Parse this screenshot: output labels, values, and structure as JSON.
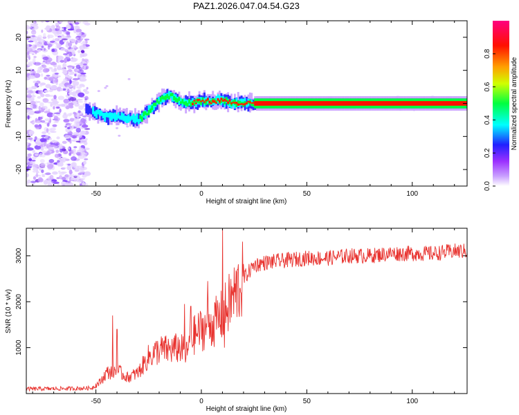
{
  "title": "PAZ1.2026.047.04.54.G23",
  "chart_data": [
    {
      "type": "heatmap",
      "title": "PAZ1.2026.047.04.54.G23",
      "xlabel": "Height of straight line (km)",
      "ylabel": "Frequency (Hz)",
      "xlim": [
        -83,
        126
      ],
      "ylim": [
        -25,
        25
      ],
      "xticks": [
        -50,
        0,
        50,
        100
      ],
      "xtick_labels": [
        "-50",
        "0",
        "50",
        "100"
      ],
      "yticks": [
        -20,
        -10,
        0,
        10,
        20
      ],
      "ytick_labels": [
        "-20",
        "-10",
        "0",
        "10",
        "20"
      ],
      "colorbar": {
        "label": "Normalized spectral amplitude",
        "range": [
          0,
          1
        ],
        "ticks": [
          0.0,
          0.2,
          0.4,
          0.6,
          0.8
        ],
        "tick_labels": [
          "0.0",
          "0.2",
          "0.4",
          "0.6",
          "0.8"
        ],
        "colors": [
          "#ffffff",
          "#9b30ff",
          "#0000ff",
          "#00ffff",
          "#00ff00",
          "#ffff00",
          "#ff8000",
          "#ff0000",
          "#ff0080"
        ]
      },
      "ridge": {
        "x": [
          -55,
          -50,
          -45,
          -40,
          -35,
          -30,
          -25,
          -20,
          -15,
          -10,
          -5,
          0,
          5,
          10,
          15,
          20,
          25,
          50,
          100,
          126
        ],
        "freq": [
          -2,
          -3,
          -4,
          -4,
          -4.5,
          -5,
          -2,
          1,
          2.5,
          0.5,
          0,
          1,
          0.5,
          1,
          0,
          0,
          0,
          0,
          0,
          0
        ],
        "amplitude": [
          0.2,
          0.3,
          0.35,
          0.4,
          0.4,
          0.45,
          0.5,
          0.55,
          0.6,
          0.65,
          0.7,
          0.75,
          0.8,
          0.85,
          0.9,
          0.9,
          0.95,
          0.95,
          0.95,
          0.95
        ]
      }
    },
    {
      "type": "line",
      "xlabel": "Height of straight line (km)",
      "ylabel": "SNR (10 * v/v)",
      "xlim": [
        -83,
        126
      ],
      "ylim": [
        0,
        3600
      ],
      "xticks": [
        -50,
        0,
        50,
        100
      ],
      "xtick_labels": [
        "-50",
        "0",
        "50",
        "100"
      ],
      "yticks": [
        1000,
        2000,
        3000
      ],
      "ytick_labels": [
        "1000",
        "2000",
        "3000"
      ],
      "color": "#e8312d",
      "series": [
        {
          "name": "SNR",
          "trend_x": [
            -83,
            -60,
            -52,
            -48,
            -45,
            -40,
            -35,
            -30,
            -25,
            -20,
            -15,
            -10,
            -7,
            -5,
            0,
            5,
            10,
            15,
            20,
            25,
            30,
            40,
            50,
            60,
            70,
            80,
            90,
            100,
            110,
            120,
            126
          ],
          "trend_y": [
            100,
            110,
            120,
            250,
            450,
            500,
            350,
            450,
            800,
            950,
            950,
            1000,
            850,
            1200,
            1400,
            1500,
            1700,
            2100,
            2500,
            2800,
            2850,
            2900,
            2950,
            2950,
            3000,
            3000,
            3050,
            3050,
            3050,
            3100,
            3100
          ],
          "spikes": [
            {
              "x": -42,
              "y": 1700
            },
            {
              "x": -40,
              "y": 1400
            },
            {
              "x": -8,
              "y": 1950
            },
            {
              "x": -5,
              "y": 1900
            },
            {
              "x": 3,
              "y": 2450
            },
            {
              "x": 10,
              "y": 3600
            },
            {
              "x": 11,
              "y": 1000
            }
          ]
        }
      ]
    }
  ]
}
